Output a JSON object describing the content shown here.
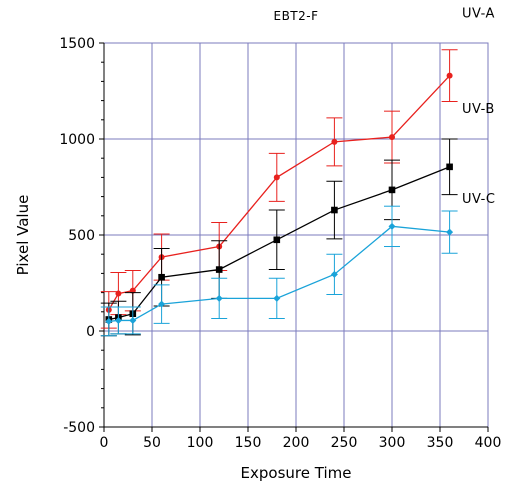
{
  "chart_data": {
    "type": "line",
    "title": "EBT2-F",
    "xlabel": "Exposure Time",
    "ylabel": "Pixel Value",
    "xlim": [
      0,
      400
    ],
    "ylim": [
      -500,
      1500
    ],
    "x_ticks": [
      0,
      50,
      100,
      150,
      200,
      250,
      300,
      350,
      400
    ],
    "y_ticks": [
      -500,
      0,
      500,
      1000,
      1500
    ],
    "x_tick_labels": [
      "0",
      "50",
      "100",
      "150",
      "200",
      "250",
      "300",
      "350",
      "400"
    ],
    "y_tick_labels": [
      "-500",
      "0",
      "500",
      "1000",
      "1500"
    ],
    "grid": true,
    "legend": "labels-at-line-ends",
    "series": [
      {
        "name": "UV-A",
        "color": "#e8211e",
        "marker": "circle",
        "x": [
          5,
          15,
          30,
          60,
          120,
          180,
          240,
          300,
          360
        ],
        "values": [
          110,
          195,
          210,
          385,
          440,
          800,
          985,
          1010,
          1330
        ],
        "errors": [
          95,
          110,
          105,
          120,
          125,
          125,
          125,
          135,
          135
        ]
      },
      {
        "name": "UV-B",
        "color": "#000000",
        "marker": "square",
        "x": [
          5,
          15,
          30,
          60,
          120,
          180,
          240,
          300,
          360
        ],
        "values": [
          60,
          70,
          90,
          280,
          320,
          475,
          630,
          735,
          855
        ],
        "errors": [
          85,
          85,
          110,
          150,
          150,
          155,
          150,
          155,
          145
        ]
      },
      {
        "name": "UV-C",
        "color": "#1aa3d9",
        "marker": "diamond",
        "x": [
          5,
          15,
          30,
          60,
          120,
          180,
          240,
          300,
          360
        ],
        "values": [
          50,
          55,
          55,
          140,
          170,
          170,
          295,
          545,
          515
        ],
        "errors": [
          75,
          70,
          70,
          100,
          105,
          105,
          105,
          105,
          110
        ]
      }
    ]
  }
}
